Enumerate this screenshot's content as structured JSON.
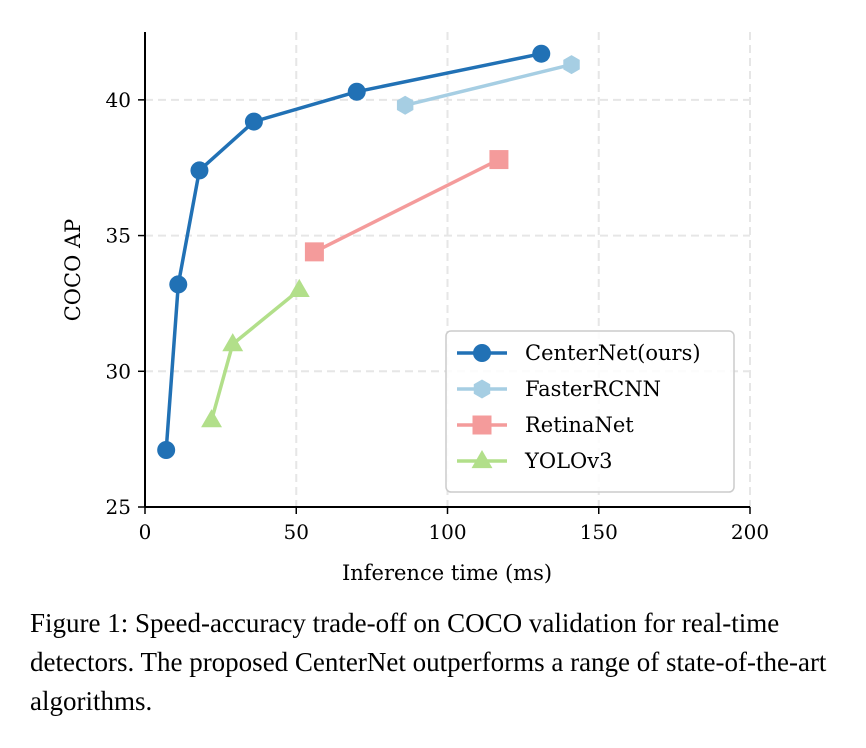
{
  "chart_data": {
    "type": "line",
    "xlabel": "Inference time (ms)",
    "ylabel": "COCO AP",
    "xlim": [
      0,
      200
    ],
    "ylim": [
      25,
      42.5
    ],
    "xticks": [
      0,
      50,
      100,
      150,
      200
    ],
    "yticks": [
      25,
      30,
      35,
      40
    ],
    "grid": true,
    "legend_position": "bottom-right",
    "series": [
      {
        "name": "CenterNet(ours)",
        "color": "#2171b5",
        "marker": "circle",
        "x": [
          7,
          11,
          18,
          36,
          70,
          131
        ],
        "y": [
          27.1,
          33.2,
          37.4,
          39.2,
          40.3,
          41.7
        ]
      },
      {
        "name": "FasterRCNN",
        "color": "#a6cee3",
        "marker": "hexagon",
        "x": [
          86,
          141
        ],
        "y": [
          39.8,
          41.3
        ]
      },
      {
        "name": "RetinaNet",
        "color": "#f49b9b",
        "marker": "square",
        "x": [
          56,
          117
        ],
        "y": [
          34.4,
          37.8
        ]
      },
      {
        "name": "YOLOv3",
        "color": "#b2df8a",
        "marker": "triangle",
        "x": [
          22,
          29,
          51
        ],
        "y": [
          28.2,
          31.0,
          33.0
        ]
      }
    ]
  },
  "caption": "Figure 1: Speed-accuracy trade-off on COCO validation for real-time detectors. The proposed CenterNet outperforms a range of state-of-the-art algorithms."
}
